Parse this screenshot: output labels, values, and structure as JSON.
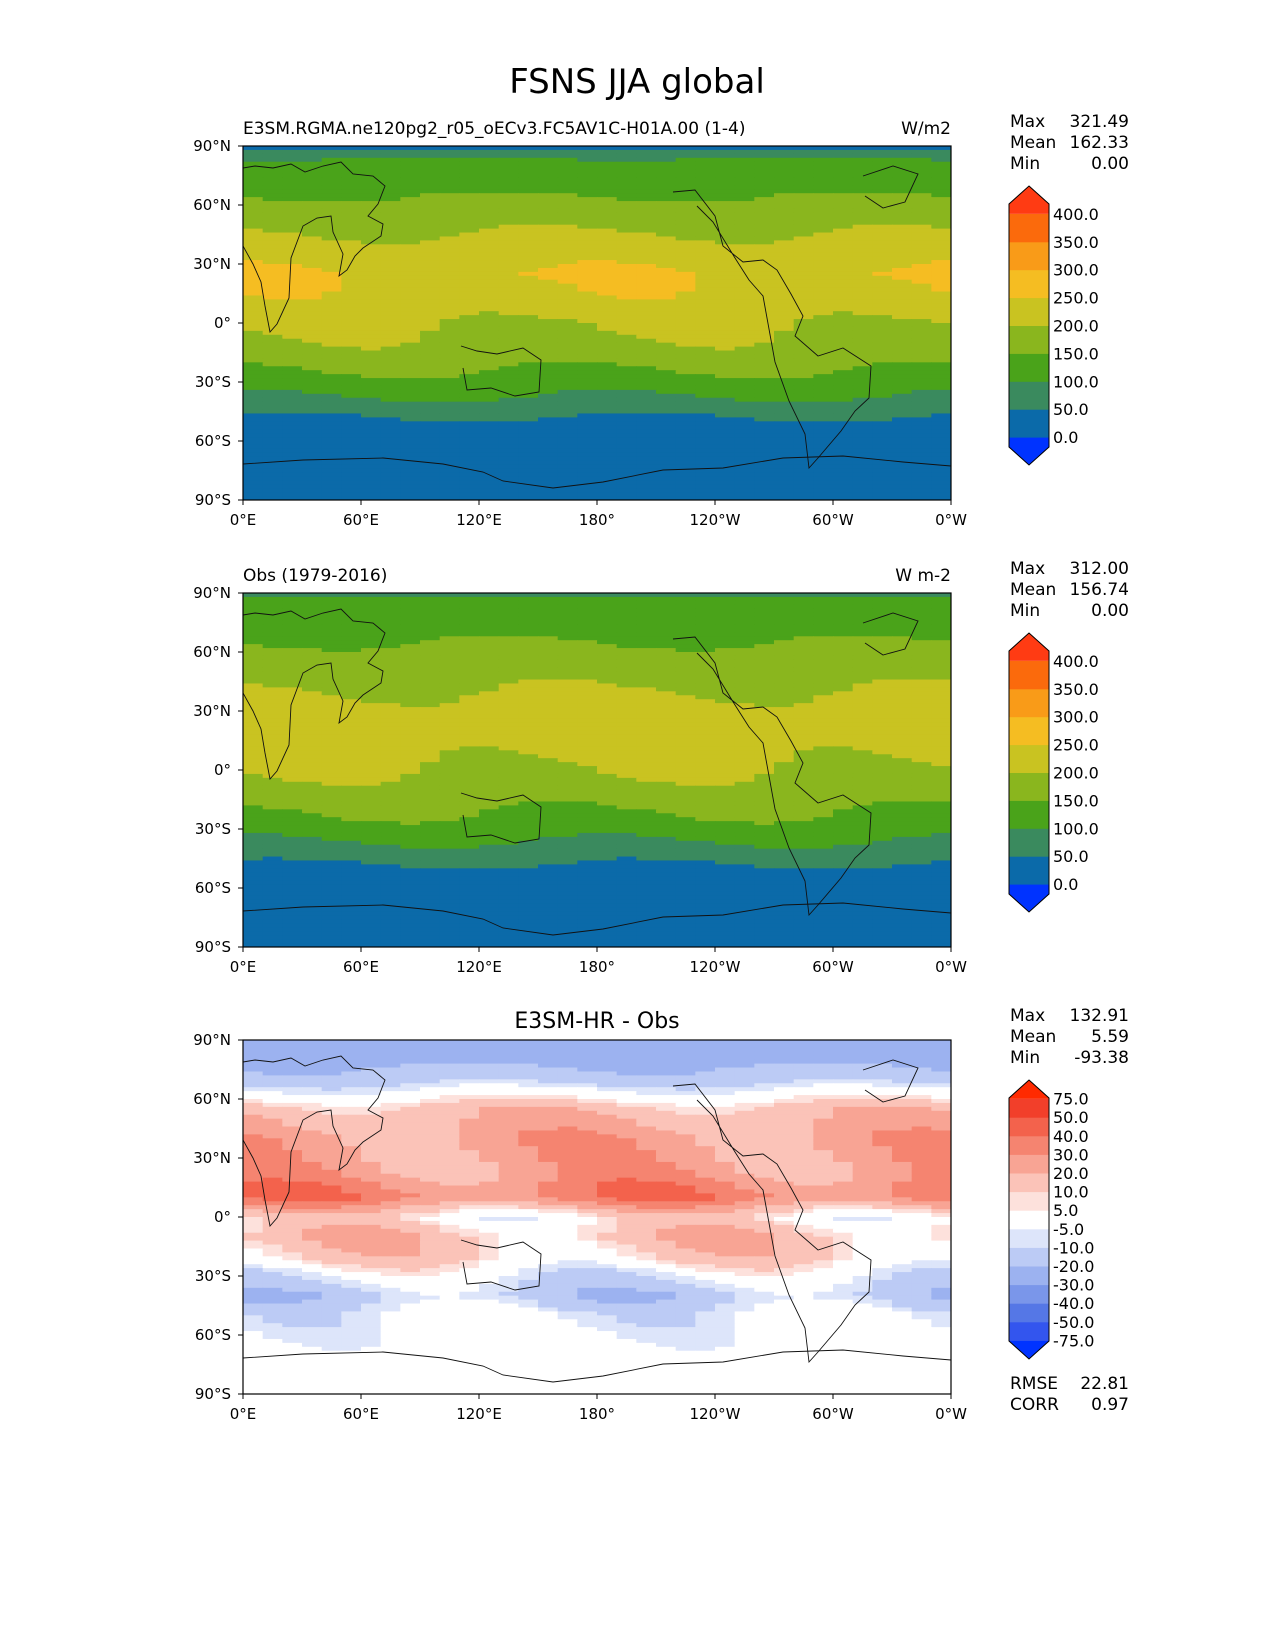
{
  "figure": {
    "title": "FSNS JJA global"
  },
  "chart_data": [
    {
      "type": "heatmap",
      "panel": "test",
      "title_left": "E3SM.RGMA.ne120pg2_r05_oECv3.FC5AV1C-H01A.00 (1-4)",
      "title_center": "",
      "units": "W/m2",
      "stats": [
        {
          "label": "Max",
          "value": "321.49"
        },
        {
          "label": "Mean",
          "value": "162.33"
        },
        {
          "label": "Min",
          "value": "0.00"
        }
      ],
      "x_ticks": [
        "0°E",
        "60°E",
        "120°E",
        "180°",
        "120°W",
        "60°W",
        "0°W"
      ],
      "y_ticks": [
        "90°N",
        "60°N",
        "30°N",
        "0°",
        "30°S",
        "60°S",
        "90°S"
      ],
      "xlim": [
        0,
        360
      ],
      "ylim": [
        -90,
        90
      ],
      "zonal_mean_profile": [
        {
          "lat": 90,
          "value": 40
        },
        {
          "lat": 82,
          "value": 110
        },
        {
          "lat": 70,
          "value": 135
        },
        {
          "lat": 55,
          "value": 175
        },
        {
          "lat": 40,
          "value": 215
        },
        {
          "lat": 25,
          "value": 250
        },
        {
          "lat": 10,
          "value": 230
        },
        {
          "lat": 0,
          "value": 205
        },
        {
          "lat": -10,
          "value": 190
        },
        {
          "lat": -20,
          "value": 165
        },
        {
          "lat": -30,
          "value": 130
        },
        {
          "lat": -40,
          "value": 90
        },
        {
          "lat": -50,
          "value": 40
        },
        {
          "lat": -70,
          "value": 10
        },
        {
          "lat": -90,
          "value": 0
        }
      ],
      "colorbar": {
        "levels": [
          "0.0",
          "50.0",
          "100.0",
          "150.0",
          "200.0",
          "250.0",
          "300.0",
          "350.0",
          "400.0"
        ],
        "colors": [
          "#0033ff",
          "#0b6aa9",
          "#3a8a5e",
          "#4aa31a",
          "#8ab61e",
          "#c9c321",
          "#f5bd22",
          "#f99b18",
          "#fb6a0c",
          "#ff3b13"
        ]
      }
    },
    {
      "type": "heatmap",
      "panel": "reference",
      "title_left": "Obs (1979-2016)",
      "title_center": "",
      "units": "W m-2",
      "stats": [
        {
          "label": "Max",
          "value": "312.00"
        },
        {
          "label": "Mean",
          "value": "156.74"
        },
        {
          "label": "Min",
          "value": "0.00"
        }
      ],
      "x_ticks": [
        "0°E",
        "60°E",
        "120°E",
        "180°",
        "120°W",
        "60°W",
        "0°W"
      ],
      "y_ticks": [
        "90°N",
        "60°N",
        "30°N",
        "0°",
        "30°S",
        "60°S",
        "90°S"
      ],
      "xlim": [
        0,
        360
      ],
      "ylim": [
        -90,
        90
      ],
      "zonal_mean_profile": [
        {
          "lat": 90,
          "value": 90
        },
        {
          "lat": 82,
          "value": 120
        },
        {
          "lat": 70,
          "value": 140
        },
        {
          "lat": 55,
          "value": 170
        },
        {
          "lat": 40,
          "value": 200
        },
        {
          "lat": 25,
          "value": 230
        },
        {
          "lat": 10,
          "value": 215
        },
        {
          "lat": 0,
          "value": 200
        },
        {
          "lat": -10,
          "value": 180
        },
        {
          "lat": -20,
          "value": 155
        },
        {
          "lat": -30,
          "value": 125
        },
        {
          "lat": -40,
          "value": 85
        },
        {
          "lat": -50,
          "value": 40
        },
        {
          "lat": -70,
          "value": 10
        },
        {
          "lat": -90,
          "value": 0
        }
      ],
      "colorbar": {
        "levels": [
          "0.0",
          "50.0",
          "100.0",
          "150.0",
          "200.0",
          "250.0",
          "300.0",
          "350.0",
          "400.0"
        ],
        "colors": [
          "#0033ff",
          "#0b6aa9",
          "#3a8a5e",
          "#4aa31a",
          "#8ab61e",
          "#c9c321",
          "#f5bd22",
          "#f99b18",
          "#fb6a0c",
          "#ff3b13"
        ]
      }
    },
    {
      "type": "heatmap",
      "panel": "difference",
      "title_left": "",
      "title_center": "E3SM-HR - Obs",
      "units": "",
      "stats": [
        {
          "label": "Max",
          "value": "132.91"
        },
        {
          "label": "Mean",
          "value": "5.59"
        },
        {
          "label": "Min",
          "value": "-93.38"
        }
      ],
      "extra_stats": [
        {
          "label": "RMSE",
          "value": "22.81"
        },
        {
          "label": "CORR",
          "value": "0.97"
        }
      ],
      "x_ticks": [
        "0°E",
        "60°E",
        "120°E",
        "180°",
        "120°W",
        "60°W",
        "0°W"
      ],
      "y_ticks": [
        "90°N",
        "60°N",
        "30°N",
        "0°",
        "30°S",
        "60°S",
        "90°S"
      ],
      "xlim": [
        0,
        360
      ],
      "ylim": [
        -90,
        90
      ],
      "zonal_mean_profile": [
        {
          "lat": 90,
          "value": -30
        },
        {
          "lat": 82,
          "value": -25
        },
        {
          "lat": 70,
          "value": -15
        },
        {
          "lat": 55,
          "value": 15
        },
        {
          "lat": 40,
          "value": 25
        },
        {
          "lat": 25,
          "value": 25
        },
        {
          "lat": 10,
          "value": 35
        },
        {
          "lat": 0,
          "value": 5
        },
        {
          "lat": -10,
          "value": 15
        },
        {
          "lat": -20,
          "value": 10
        },
        {
          "lat": -30,
          "value": -5
        },
        {
          "lat": -40,
          "value": -15
        },
        {
          "lat": -50,
          "value": -5
        },
        {
          "lat": -70,
          "value": 0
        },
        {
          "lat": -90,
          "value": 0
        }
      ],
      "colorbar": {
        "levels": [
          "-75.0",
          "-50.0",
          "-40.0",
          "-30.0",
          "-20.0",
          "-10.0",
          "-5.0",
          "5.0",
          "10.0",
          "20.0",
          "30.0",
          "40.0",
          "50.0",
          "75.0"
        ],
        "colors": [
          "#0033ff",
          "#3355ee",
          "#5577e6",
          "#7a96ea",
          "#9cb2f0",
          "#bccbf5",
          "#dde5fa",
          "#ffffff",
          "#fde1dc",
          "#fbc3b8",
          "#f8a494",
          "#f58470",
          "#f3624c",
          "#f23f2a",
          "#ff2a00"
        ]
      }
    }
  ]
}
